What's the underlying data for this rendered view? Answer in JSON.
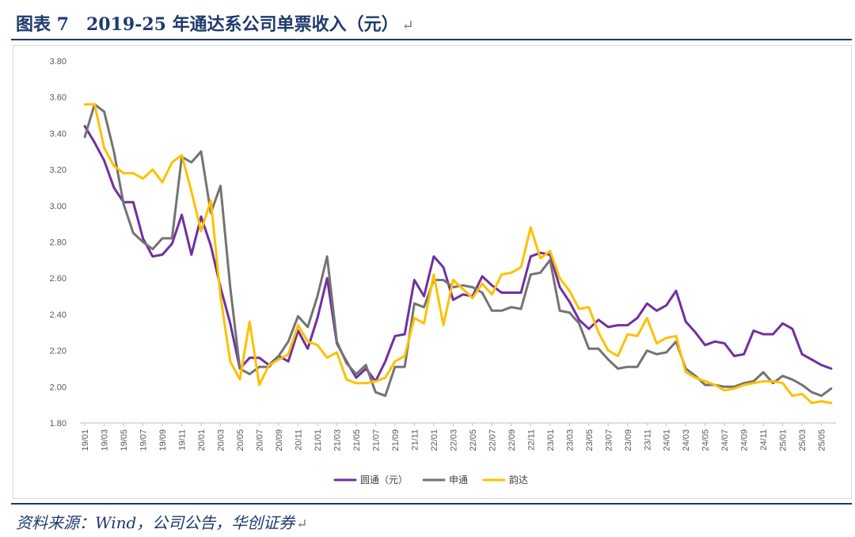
{
  "header": {
    "title": "图表 7　2019-25 年通达系公司单票收入（元）",
    "return_mark": "↵"
  },
  "footer": {
    "source": "资料来源：Wind，公司公告，华创证券",
    "return_mark": "↵"
  },
  "chart_data": {
    "type": "line",
    "title": "",
    "xlabel": "",
    "ylabel": "",
    "ylim": [
      1.8,
      3.8
    ],
    "yticks": [
      "1.80",
      "2.00",
      "2.20",
      "2.40",
      "2.60",
      "2.80",
      "3.00",
      "3.20",
      "3.40",
      "3.60",
      "3.80"
    ],
    "grid": false,
    "legend_position": "bottom",
    "x": [
      "19/01",
      "19/02",
      "19/03",
      "19/04",
      "19/05",
      "19/06",
      "19/07",
      "19/08",
      "19/09",
      "19/10",
      "19/11",
      "19/12",
      "20/01",
      "20/02",
      "20/03",
      "20/04",
      "20/05",
      "20/06",
      "20/07",
      "20/08",
      "20/09",
      "20/10",
      "20/11",
      "20/12",
      "21/01",
      "21/02",
      "21/03",
      "21/04",
      "21/05",
      "21/06",
      "21/07",
      "21/08",
      "21/09",
      "21/10",
      "21/11",
      "21/12",
      "22/01",
      "22/02",
      "22/03",
      "22/04",
      "22/05",
      "22/06",
      "22/07",
      "22/08",
      "22/09",
      "22/10",
      "22/11",
      "22/12",
      "23/01",
      "23/02",
      "23/03",
      "23/04",
      "23/05",
      "23/06",
      "23/07",
      "23/08",
      "23/09",
      "23/10",
      "23/11",
      "23/12",
      "24/01",
      "24/02",
      "24/03",
      "24/04",
      "24/05",
      "24/06",
      "24/07",
      "24/08",
      "24/09",
      "24/10",
      "24/11",
      "24/12",
      "25/01",
      "25/02",
      "25/03",
      "25/04",
      "25/05",
      "25/06"
    ],
    "x_tick_labels": [
      "19/01",
      "19/03",
      "19/05",
      "19/07",
      "19/09",
      "19/11",
      "20/01",
      "20/03",
      "20/05",
      "20/07",
      "20/09",
      "20/11",
      "21/01",
      "21/03",
      "21/05",
      "21/07",
      "21/09",
      "21/11",
      "22/01",
      "22/03",
      "22/05",
      "22/07",
      "22/09",
      "22/11",
      "23/01",
      "23/03",
      "23/05",
      "23/07",
      "23/09",
      "23/11",
      "24/01",
      "24/03",
      "24/05",
      "24/07",
      "24/09",
      "24/11",
      "25/01",
      "25/03",
      "25/05"
    ],
    "series": [
      {
        "name": "圆通（元）",
        "color": "#7030a0",
        "values": [
          3.44,
          3.35,
          3.25,
          3.1,
          3.02,
          3.02,
          2.82,
          2.72,
          2.73,
          2.79,
          2.95,
          2.73,
          2.94,
          2.78,
          2.55,
          2.35,
          2.1,
          2.16,
          2.16,
          2.12,
          2.17,
          2.14,
          2.31,
          2.21,
          2.38,
          2.6,
          2.24,
          2.14,
          2.05,
          2.1,
          2.03,
          2.14,
          2.28,
          2.29,
          2.59,
          2.5,
          2.72,
          2.66,
          2.48,
          2.51,
          2.5,
          2.61,
          2.56,
          2.52,
          2.52,
          2.52,
          2.72,
          2.74,
          2.73,
          2.55,
          2.47,
          2.37,
          2.32,
          2.37,
          2.33,
          2.34,
          2.34,
          2.38,
          2.46,
          2.42,
          2.45,
          2.53,
          2.36,
          2.3,
          2.23,
          2.25,
          2.24,
          2.17,
          2.18,
          2.31,
          2.29,
          2.29,
          2.35,
          2.32,
          2.18,
          2.15,
          2.12,
          2.1
        ]
      },
      {
        "name": "申通",
        "color": "#737373",
        "values": [
          3.38,
          3.56,
          3.52,
          3.3,
          3.01,
          2.85,
          2.8,
          2.76,
          2.82,
          2.82,
          3.27,
          3.24,
          3.3,
          2.96,
          3.11,
          2.55,
          2.1,
          2.07,
          2.11,
          2.11,
          2.17,
          2.25,
          2.39,
          2.33,
          2.5,
          2.72,
          2.25,
          2.13,
          2.07,
          2.12,
          1.97,
          1.95,
          2.11,
          2.11,
          2.46,
          2.44,
          2.59,
          2.59,
          2.55,
          2.56,
          2.55,
          2.52,
          2.42,
          2.42,
          2.44,
          2.43,
          2.62,
          2.63,
          2.7,
          2.42,
          2.41,
          2.35,
          2.21,
          2.21,
          2.15,
          2.1,
          2.11,
          2.11,
          2.2,
          2.18,
          2.19,
          2.25,
          2.1,
          2.06,
          2.01,
          2.01,
          2.0,
          2.0,
          2.02,
          2.03,
          2.08,
          2.02,
          2.06,
          2.04,
          2.01,
          1.97,
          1.95,
          1.99
        ]
      },
      {
        "name": "韵达",
        "color": "#ffc000",
        "values": [
          3.56,
          3.56,
          3.32,
          3.22,
          3.18,
          3.18,
          3.15,
          3.2,
          3.13,
          3.24,
          3.28,
          3.08,
          2.86,
          3.03,
          2.5,
          2.14,
          2.04,
          2.36,
          2.01,
          2.12,
          2.15,
          2.18,
          2.34,
          2.25,
          2.23,
          2.16,
          2.19,
          2.04,
          2.02,
          2.02,
          2.03,
          2.05,
          2.14,
          2.17,
          2.38,
          2.35,
          2.62,
          2.34,
          2.59,
          2.54,
          2.49,
          2.57,
          2.51,
          2.62,
          2.63,
          2.66,
          2.88,
          2.71,
          2.75,
          2.6,
          2.53,
          2.43,
          2.44,
          2.3,
          2.2,
          2.17,
          2.29,
          2.28,
          2.38,
          2.24,
          2.27,
          2.28,
          2.08,
          2.05,
          2.03,
          2.01,
          1.98,
          1.99,
          2.01,
          2.02,
          2.03,
          2.03,
          2.02,
          1.95,
          1.96,
          1.91,
          1.92,
          1.91
        ]
      }
    ]
  }
}
